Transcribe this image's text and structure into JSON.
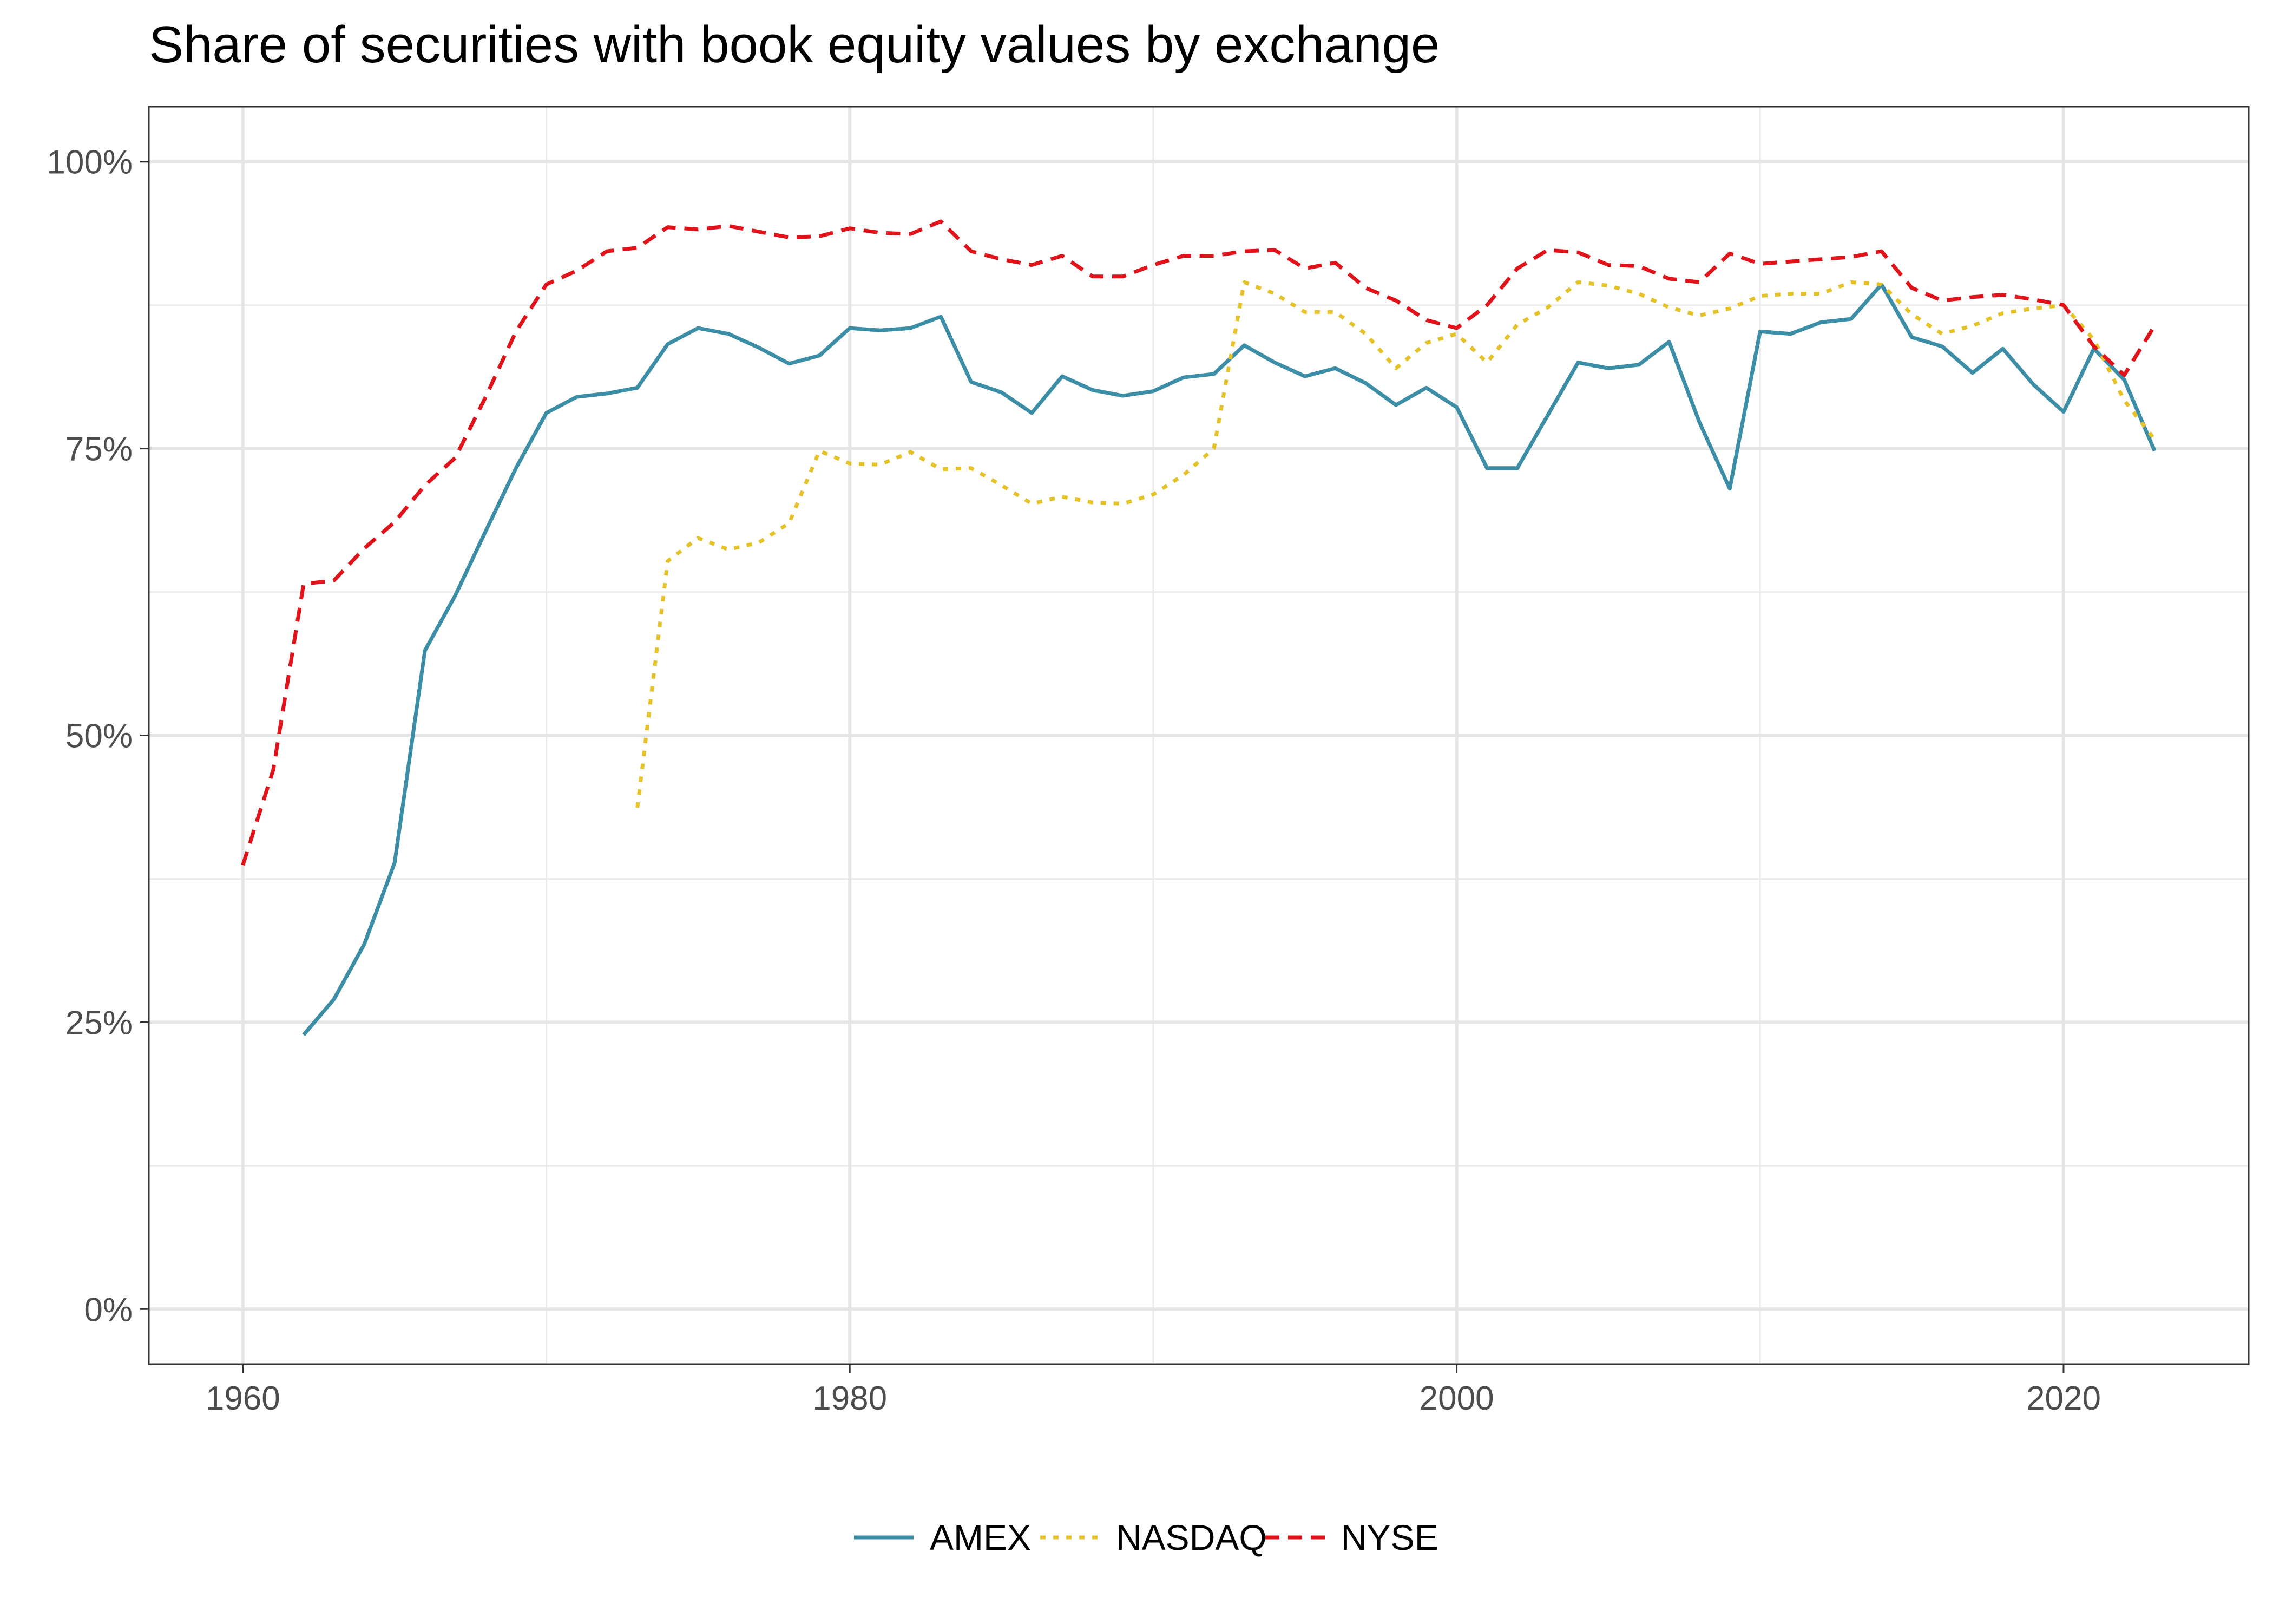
{
  "chart_data": {
    "type": "line",
    "title": "Share of securities with book equity values by exchange",
    "xlabel": "",
    "ylabel": "",
    "xlim": [
      1956.9,
      2026.1
    ],
    "ylim": [
      -0.048,
      1.048
    ],
    "x_ticks": [
      1960,
      1980,
      2000,
      2020
    ],
    "x_tick_labels": [
      "1960",
      "1980",
      "2000",
      "2020"
    ],
    "y_ticks": [
      0,
      0.25,
      0.5,
      0.75,
      1.0
    ],
    "y_tick_labels": [
      "0%",
      "25%",
      "50%",
      "75%",
      "100%"
    ],
    "grid": true,
    "legend_position": "bottom",
    "series": [
      {
        "name": "AMEX",
        "color": "#3B8EA5",
        "dash": "solid",
        "x": [
          1962,
          1963,
          1964,
          1965,
          1966,
          1967,
          1968,
          1969,
          1970,
          1971,
          1972,
          1973,
          1974,
          1975,
          1976,
          1977,
          1978,
          1979,
          1980,
          1981,
          1982,
          1983,
          1984,
          1985,
          1986,
          1987,
          1988,
          1989,
          1990,
          1991,
          1992,
          1993,
          1994,
          1995,
          1996,
          1997,
          1998,
          1999,
          2000,
          2001,
          2002,
          2003,
          2004,
          2005,
          2006,
          2007,
          2008,
          2009,
          2010,
          2011,
          2012,
          2013,
          2014,
          2015,
          2016,
          2017,
          2018,
          2019,
          2020,
          2021,
          2022,
          2023
        ],
        "values": [
          0.239,
          0.27,
          0.318,
          0.389,
          0.574,
          0.622,
          0.678,
          0.733,
          0.781,
          0.795,
          0.798,
          0.803,
          0.841,
          0.855,
          0.85,
          0.838,
          0.824,
          0.831,
          0.855,
          0.853,
          0.855,
          0.865,
          0.808,
          0.799,
          0.781,
          0.813,
          0.801,
          0.796,
          0.8,
          0.812,
          0.815,
          0.84,
          0.825,
          0.813,
          0.82,
          0.807,
          0.788,
          0.803,
          0.786,
          0.733,
          0.733,
          0.779,
          0.825,
          0.82,
          0.823,
          0.843,
          0.773,
          0.715,
          0.852,
          0.85,
          0.86,
          0.863,
          0.893,
          0.847,
          0.839,
          0.816,
          0.837,
          0.806,
          0.782,
          0.837,
          0.81,
          0.748
        ]
      },
      {
        "name": "NASDAQ",
        "color": "#E6C229",
        "dash": "dotted",
        "x": [
          1973,
          1974,
          1975,
          1976,
          1977,
          1978,
          1979,
          1980,
          1981,
          1982,
          1983,
          1984,
          1985,
          1986,
          1987,
          1988,
          1989,
          1990,
          1991,
          1992,
          1993,
          1994,
          1995,
          1996,
          1997,
          1998,
          1999,
          2000,
          2001,
          2002,
          2003,
          2004,
          2005,
          2006,
          2007,
          2008,
          2009,
          2010,
          2011,
          2012,
          2013,
          2014,
          2015,
          2016,
          2017,
          2018,
          2019,
          2020,
          2021,
          2022,
          2023
        ],
        "values": [
          0.437,
          0.652,
          0.672,
          0.662,
          0.668,
          0.685,
          0.748,
          0.737,
          0.736,
          0.747,
          0.732,
          0.733,
          0.718,
          0.702,
          0.708,
          0.703,
          0.702,
          0.71,
          0.727,
          0.75,
          0.895,
          0.885,
          0.869,
          0.869,
          0.85,
          0.82,
          0.842,
          0.85,
          0.825,
          0.858,
          0.873,
          0.895,
          0.892,
          0.885,
          0.873,
          0.866,
          0.872,
          0.883,
          0.885,
          0.885,
          0.895,
          0.893,
          0.867,
          0.85,
          0.857,
          0.868,
          0.872,
          0.875,
          0.845,
          0.792,
          0.758
        ]
      },
      {
        "name": "NYSE",
        "color": "#E0131A",
        "dash": "dashed",
        "x": [
          1960,
          1961,
          1962,
          1963,
          1964,
          1965,
          1966,
          1967,
          1968,
          1969,
          1970,
          1971,
          1972,
          1973,
          1974,
          1975,
          1976,
          1977,
          1978,
          1979,
          1980,
          1981,
          1982,
          1983,
          1984,
          1985,
          1986,
          1987,
          1988,
          1989,
          1990,
          1991,
          1992,
          1993,
          1994,
          1995,
          1996,
          1997,
          1998,
          1999,
          2000,
          2001,
          2002,
          2003,
          2004,
          2005,
          2006,
          2007,
          2008,
          2009,
          2010,
          2011,
          2012,
          2013,
          2014,
          2015,
          2016,
          2017,
          2018,
          2019,
          2020,
          2021,
          2022,
          2023
        ],
        "values": [
          0.387,
          0.47,
          0.632,
          0.635,
          0.663,
          0.686,
          0.718,
          0.742,
          0.795,
          0.852,
          0.893,
          0.905,
          0.922,
          0.925,
          0.943,
          0.941,
          0.944,
          0.939,
          0.934,
          0.935,
          0.942,
          0.938,
          0.937,
          0.948,
          0.922,
          0.915,
          0.91,
          0.918,
          0.9,
          0.9,
          0.91,
          0.918,
          0.918,
          0.922,
          0.923,
          0.907,
          0.912,
          0.89,
          0.879,
          0.862,
          0.855,
          0.875,
          0.907,
          0.923,
          0.921,
          0.91,
          0.909,
          0.898,
          0.895,
          0.92,
          0.911,
          0.913,
          0.915,
          0.917,
          0.922,
          0.89,
          0.879,
          0.882,
          0.884,
          0.88,
          0.875,
          0.839,
          0.814,
          0.857
        ]
      }
    ]
  }
}
